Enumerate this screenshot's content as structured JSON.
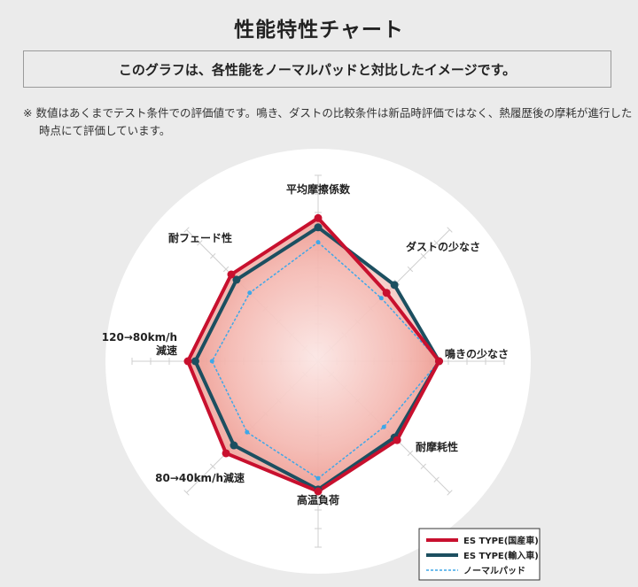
{
  "page": {
    "title": "性能特性チャート",
    "subtitle": "このグラフは、各性能をノーマルパッドと対比したイメージです。",
    "note": "※ 数値はあくまでテスト条件での評価値です。鳴き、ダストの比較条件は新品時評価ではなく、熱履歴後の摩耗が進行した時点にて評価しています。"
  },
  "chart_data": {
    "type": "radar",
    "max": 10,
    "rings": 10,
    "axes": [
      {
        "label_lines": [
          "平均摩擦係数"
        ]
      },
      {
        "label_lines": [
          "ダストの少なさ"
        ]
      },
      {
        "label_lines": [
          "鳴きの少なさ"
        ]
      },
      {
        "label_lines": [
          "耐摩耗性"
        ]
      },
      {
        "label_lines": [
          "高温負荷"
        ]
      },
      {
        "label_lines": [
          "80→40km/h減速"
        ]
      },
      {
        "label_lines": [
          "120→80km/h",
          "減速"
        ]
      },
      {
        "label_lines": [
          "耐フェード性"
        ]
      }
    ],
    "series": [
      {
        "name": "ES TYPE(国産車)",
        "color": "#c8102e",
        "dash": false,
        "fill": true,
        "values": [
          7.7,
          5.2,
          6.5,
          6.0,
          7.0,
          7.0,
          7.0,
          6.6
        ]
      },
      {
        "name": "ES TYPE(輸入車)",
        "color": "#1c4f60",
        "dash": false,
        "fill": true,
        "values": [
          7.2,
          5.8,
          6.5,
          5.8,
          6.9,
          6.4,
          6.6,
          6.2
        ]
      },
      {
        "name": "ノーマルパッド",
        "color": "#3ea7e8",
        "dash": true,
        "fill": false,
        "values": [
          6.4,
          4.8,
          6.5,
          5.0,
          6.3,
          5.4,
          5.7,
          5.2
        ]
      }
    ],
    "legend": "bottom-right"
  }
}
